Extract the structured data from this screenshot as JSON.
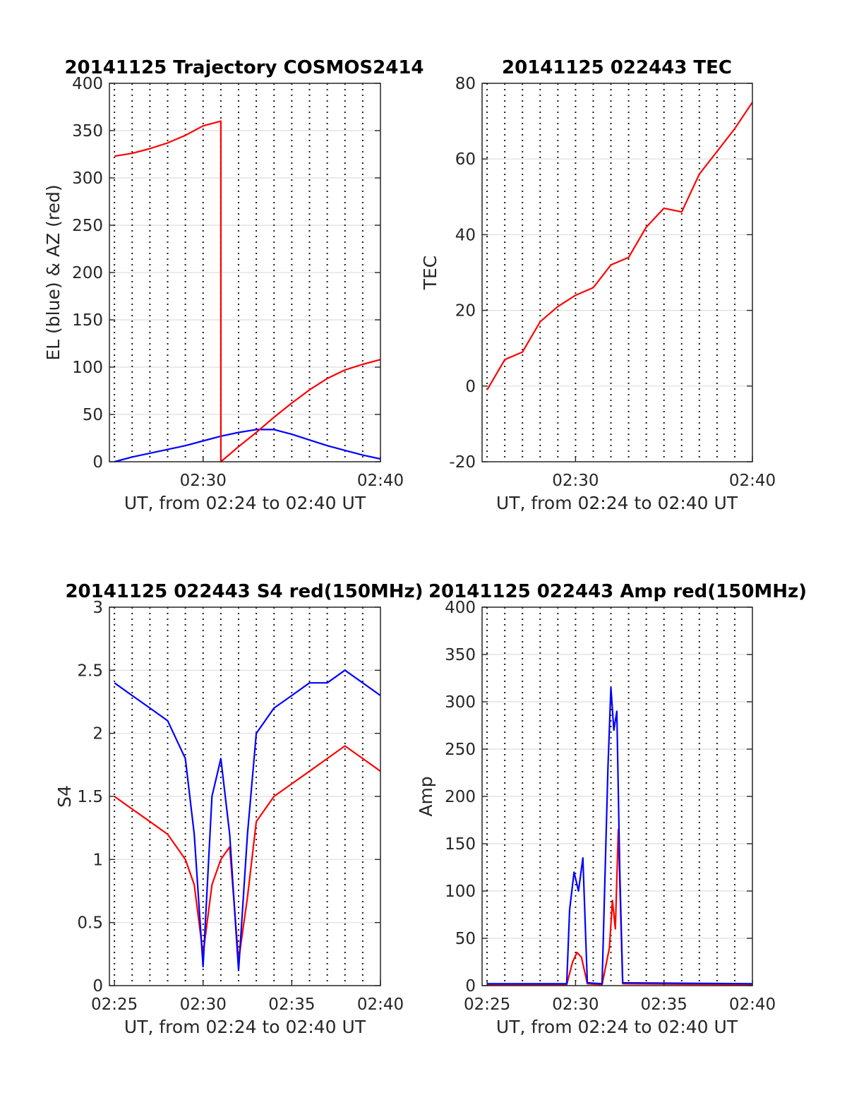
{
  "chart_data": [
    {
      "id": "trajectory",
      "type": "line",
      "title": "20141125 Trajectory COSMOS2414",
      "xlabel": "UT, from 02:24 to 02:40 UT",
      "ylabel": "EL (blue) & AZ (red)",
      "xlim": [
        "02:24:43",
        "02:40:00"
      ],
      "ylim": [
        0,
        400
      ],
      "xticks": [
        "02:30",
        "02:40"
      ],
      "yticks": [
        "0",
        "50",
        "100",
        "150",
        "200",
        "250",
        "300",
        "350",
        "400"
      ],
      "grid": true,
      "colors": {
        "el": "#0000ff",
        "az": "#ff0000"
      },
      "series": [
        {
          "color_role": "el",
          "x": [
            "02:25",
            "02:26",
            "02:27",
            "02:28",
            "02:29",
            "02:30",
            "02:31",
            "02:32",
            "02:33",
            "02:34",
            "02:35",
            "02:36",
            "02:37",
            "02:38",
            "02:39",
            "02:40"
          ],
          "values": [
            0,
            5,
            9,
            13,
            17,
            22,
            27,
            31,
            34,
            34,
            29,
            23,
            17,
            12,
            7,
            3
          ]
        },
        {
          "color_role": "az",
          "x": [
            "02:25",
            "02:26",
            "02:27",
            "02:28",
            "02:29",
            "02:30",
            "02:31",
            "02:31",
            "02:32",
            "02:33",
            "02:34",
            "02:35",
            "02:36",
            "02:37",
            "02:38",
            "02:39",
            "02:40"
          ],
          "values": [
            323,
            326,
            331,
            337,
            345,
            355,
            360,
            0,
            16,
            31,
            47,
            62,
            76,
            88,
            97,
            103,
            108
          ]
        }
      ]
    },
    {
      "id": "tec",
      "type": "line",
      "title": "20141125 022443 TEC",
      "xlabel": "UT, from 02:24 to 02:40 UT",
      "ylabel": "TEC",
      "xlim": [
        "02:24:43",
        "02:40:00"
      ],
      "ylim": [
        -20,
        80
      ],
      "xticks": [
        "02:30",
        "02:40"
      ],
      "yticks": [
        "-20",
        "0",
        "20",
        "40",
        "60",
        "80"
      ],
      "grid": true,
      "colors": {
        "tec": "#ff0000"
      },
      "series": [
        {
          "color_role": "tec",
          "x": [
            "02:25",
            "02:26",
            "02:27",
            "02:28",
            "02:29",
            "02:30",
            "02:31",
            "02:32",
            "02:33",
            "02:34",
            "02:35",
            "02:36",
            "02:37",
            "02:38",
            "02:39",
            "02:40"
          ],
          "values": [
            -1,
            7,
            9,
            17,
            21,
            24,
            26,
            32,
            34,
            42,
            47,
            46,
            56,
            62,
            68,
            75
          ]
        }
      ]
    },
    {
      "id": "s4",
      "type": "line",
      "title": "20141125 022443 S4 red(150MHz)",
      "xlabel": "UT, from 02:24 to 02:40 UT",
      "ylabel": "S4",
      "xlim": [
        "02:24:43",
        "02:40:00"
      ],
      "ylim": [
        0,
        3
      ],
      "xticks": [
        "02:25",
        "02:30",
        "02:35",
        "02:40"
      ],
      "yticks": [
        "0",
        "0.5",
        "1",
        "1.5",
        "2",
        "2.5",
        "3"
      ],
      "grid": true,
      "colors": {
        "red": "#ff0000",
        "blue": "#0000ff"
      },
      "series": [
        {
          "color_role": "red",
          "x": [
            "02:25",
            "02:26",
            "02:27",
            "02:28",
            "02:29",
            "02:29:30",
            "02:30",
            "02:30:30",
            "02:31",
            "02:31:30",
            "02:32",
            "02:32:30",
            "02:33",
            "02:34",
            "02:35",
            "02:36",
            "02:37",
            "02:38",
            "02:39",
            "02:40"
          ],
          "values": [
            1.5,
            1.4,
            1.3,
            1.2,
            1.0,
            0.8,
            0.25,
            0.8,
            1.0,
            1.1,
            0.2,
            0.7,
            1.3,
            1.5,
            1.6,
            1.7,
            1.8,
            1.9,
            1.8,
            1.7
          ]
        },
        {
          "color_role": "blue",
          "x": [
            "02:25",
            "02:26",
            "02:27",
            "02:28",
            "02:29",
            "02:29:30",
            "02:30",
            "02:30:30",
            "02:31",
            "02:31:30",
            "02:32",
            "02:32:30",
            "02:33",
            "02:34",
            "02:35",
            "02:36",
            "02:37",
            "02:38",
            "02:39",
            "02:40"
          ],
          "values": [
            2.4,
            2.3,
            2.2,
            2.1,
            1.8,
            1.2,
            0.15,
            1.5,
            1.8,
            1.2,
            0.12,
            1.2,
            2.0,
            2.2,
            2.3,
            2.4,
            2.4,
            2.5,
            2.4,
            2.3
          ]
        }
      ]
    },
    {
      "id": "amp",
      "type": "line",
      "title": "20141125 022443 Amp red(150MHz)",
      "xlabel": "UT, from 02:24 to 02:40 UT",
      "ylabel": "Amp",
      "xlim": [
        "02:24:43",
        "02:40:00"
      ],
      "ylim": [
        0,
        400
      ],
      "xticks": [
        "02:25",
        "02:30",
        "02:35",
        "02:40"
      ],
      "yticks": [
        "0",
        "50",
        "100",
        "150",
        "200",
        "250",
        "300",
        "350",
        "400"
      ],
      "grid": true,
      "colors": {
        "red": "#ff0000",
        "blue": "#0000ff"
      },
      "series": [
        {
          "color_role": "red",
          "x": [
            "02:25",
            "02:29:30",
            "02:29:50",
            "02:30:05",
            "02:30:20",
            "02:30:40",
            "02:31:30",
            "02:31:55",
            "02:32:05",
            "02:32:15",
            "02:32:25",
            "02:32:40",
            "02:40"
          ],
          "values": [
            1,
            1,
            25,
            35,
            30,
            2,
            1,
            40,
            90,
            60,
            165,
            2,
            1
          ]
        },
        {
          "color_role": "blue",
          "x": [
            "02:25",
            "02:29:30",
            "02:29:40",
            "02:29:55",
            "02:30:10",
            "02:30:25",
            "02:30:40",
            "02:31:30",
            "02:31:50",
            "02:32:00",
            "02:32:10",
            "02:32:20",
            "02:32:30",
            "02:32:40",
            "02:40"
          ],
          "values": [
            2,
            2,
            80,
            120,
            100,
            135,
            3,
            2,
            230,
            315,
            270,
            290,
            120,
            3,
            2
          ]
        }
      ]
    }
  ]
}
